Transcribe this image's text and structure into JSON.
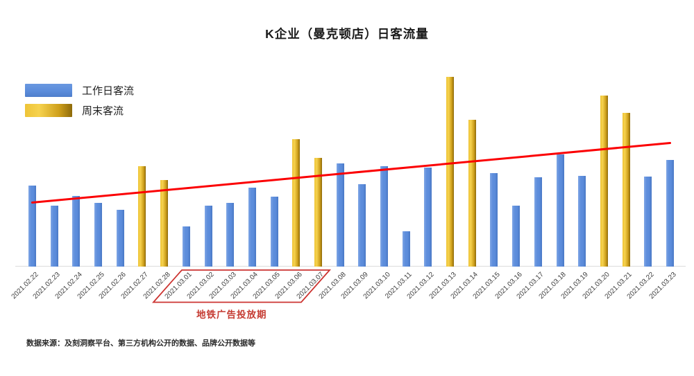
{
  "page": {
    "title": "K企业（曼克顿店）日客流量",
    "source_note": "数据来源：及刻洞察平台、第三方机构公开的数据、品牌公开数据等"
  },
  "legend": [
    {
      "label": "工作日客流",
      "color": "#5B8CDB"
    },
    {
      "label": "周末客流",
      "color": "#D4A41F"
    }
  ],
  "annotation": {
    "label": "地铁广告投放期",
    "from": "2021.03.01",
    "to": "2021.03.07",
    "color": "#C53B32"
  },
  "chart_data": {
    "type": "bar",
    "title": "K企业（曼克顿店）日客流量",
    "xlabel": "",
    "ylabel": "",
    "value_axis": {
      "visible": false,
      "unit": "relative height (no y-axis shown in chart)"
    },
    "grid": false,
    "legend_position": "top-left",
    "categories": [
      "2021.02.22",
      "2021.02.23",
      "2021.02.24",
      "2021.02.25",
      "2021.02.26",
      "2021.02.27",
      "2021.02.28",
      "2021.03.01",
      "2021.03.02",
      "2021.03.03",
      "2021.03.04",
      "2021.03.05",
      "2021.03.06",
      "2021.03.07",
      "2021.03.08",
      "2021.03.09",
      "2021.03.10",
      "2021.03.11",
      "2021.03.12",
      "2021.03.13",
      "2021.03.14",
      "2021.03.15",
      "2021.03.16",
      "2021.03.17",
      "2021.03.18",
      "2021.03.19",
      "2021.03.20",
      "2021.03.21",
      "2021.03.22",
      "2021.03.23"
    ],
    "series": [
      {
        "name": "工作日客流",
        "color": "#5B8CDB",
        "values": [
          117,
          88,
          102,
          92,
          82,
          null,
          null,
          58,
          88,
          92,
          114,
          101,
          null,
          null,
          149,
          119,
          145,
          51,
          143,
          null,
          null,
          135,
          88,
          129,
          162,
          131,
          null,
          null,
          130,
          154
        ]
      },
      {
        "name": "周末客流",
        "color": "#D4A41F",
        "values": [
          null,
          null,
          null,
          null,
          null,
          145,
          125,
          null,
          null,
          null,
          null,
          null,
          184,
          157,
          null,
          null,
          null,
          null,
          null,
          274,
          212,
          null,
          null,
          null,
          null,
          null,
          247,
          222,
          null,
          null
        ]
      }
    ],
    "trendline": {
      "color": "#FB0003",
      "start_category": "2021.02.22",
      "start_value": 92,
      "end_category": "2021.03.23",
      "end_value": 178
    },
    "annotation_range": {
      "label": "地铁广告投放期",
      "from": "2021.03.01",
      "to": "2021.03.07"
    }
  }
}
